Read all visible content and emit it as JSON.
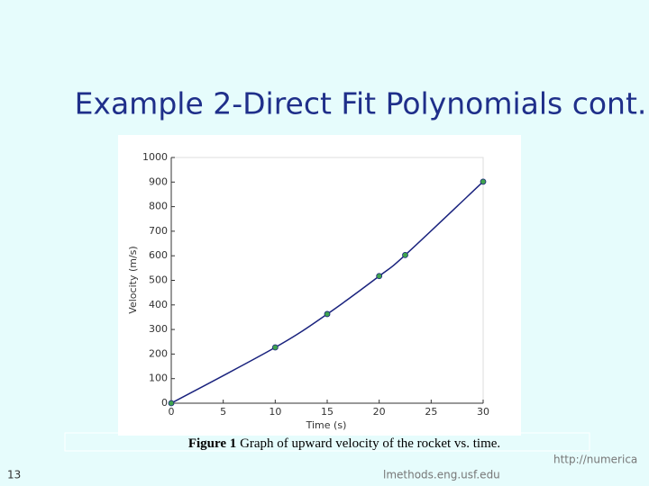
{
  "slide": {
    "title": "Example 2-Direct Fit Polynomials cont.",
    "caption_label": "Figure 1",
    "caption_text": "Graph of upward velocity of the rocket vs. time.",
    "page_number": "13",
    "url_right": "http://numerica",
    "url_bottom": "lmethods.eng.usf.edu"
  },
  "chart_data": {
    "type": "line",
    "xlabel": "Time (s)",
    "ylabel": "Velocity (m/s)",
    "x": [
      0,
      10,
      15,
      20,
      22.5,
      30
    ],
    "series": [
      {
        "color": "#1a237e",
        "marker_color": "#3fa34d",
        "values": [
          0,
          227.04,
          362.78,
          517.35,
          602.97,
          901.67
        ]
      }
    ],
    "xlim": [
      0,
      30
    ],
    "xticks": [
      0,
      5,
      10,
      15,
      20,
      25,
      30
    ],
    "ylim": [
      0,
      1000
    ],
    "yticks": [
      0,
      100,
      200,
      300,
      400,
      500,
      600,
      700,
      800,
      900,
      1000
    ]
  }
}
